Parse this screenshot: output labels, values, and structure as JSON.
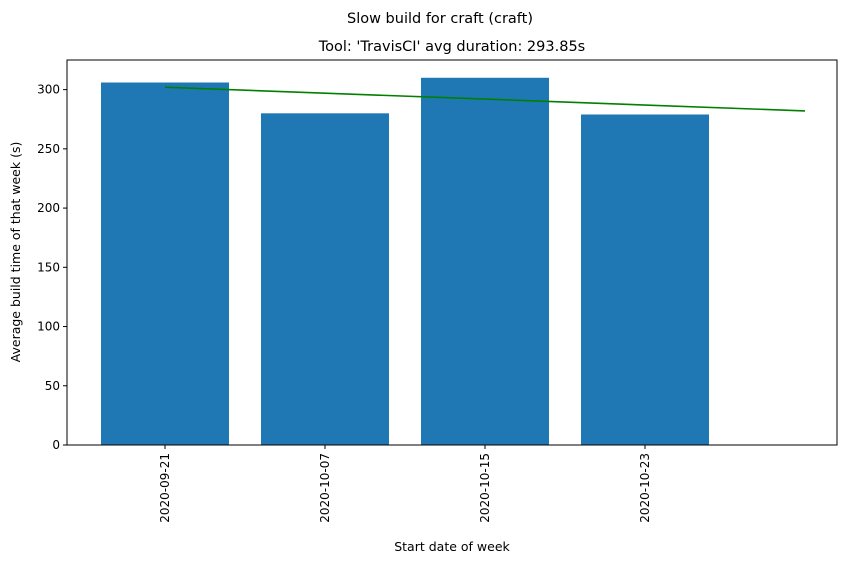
{
  "chart_data": {
    "type": "bar",
    "suptitle": "Slow build for craft (craft)",
    "title": "Tool: 'TravisCI' avg duration: 293.85s",
    "xlabel": "Start date of week",
    "ylabel": "Average build time of that week (s)",
    "categories": [
      "2020-09-21",
      "2020-10-07",
      "2020-10-15",
      "2020-10-23"
    ],
    "values": [
      306,
      280,
      310,
      279
    ],
    "bar_color": "#1f77b4",
    "trend_line": {
      "color": "#008000",
      "start_value": 302,
      "end_value": 282,
      "extends_categories": 1
    },
    "ylim": [
      0,
      325
    ],
    "yticks": [
      0,
      50,
      100,
      150,
      200,
      250,
      300
    ],
    "grid": false,
    "legend": "none"
  }
}
